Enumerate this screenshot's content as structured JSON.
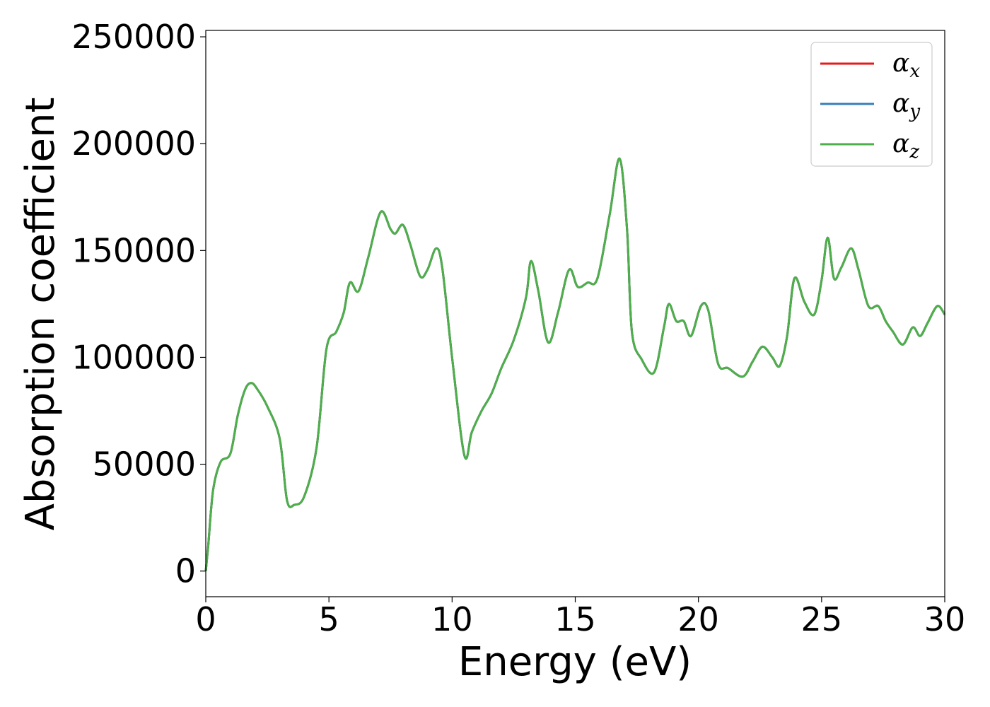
{
  "chart_data": {
    "type": "line",
    "title": "",
    "xlabel": "Energy (eV)",
    "ylabel": "Absorption coefficient",
    "xlim": [
      0,
      30
    ],
    "ylim": [
      -12000,
      253000
    ],
    "xticks": [
      0,
      5,
      10,
      15,
      20,
      25,
      30
    ],
    "xtick_labels": [
      "0",
      "5",
      "10",
      "15",
      "20",
      "25",
      "30"
    ],
    "yticks": [
      0,
      50000,
      100000,
      150000,
      200000,
      250000
    ],
    "ytick_labels": [
      "0",
      "50000",
      "100000",
      "150000",
      "200000",
      "250000"
    ],
    "grid": false,
    "legend_position": "top-right",
    "x": [
      0,
      0.1,
      0.3,
      0.6,
      1.0,
      1.3,
      1.6,
      1.85,
      2.1,
      2.5,
      3.0,
      3.3,
      3.6,
      4.0,
      4.5,
      4.9,
      5.3,
      5.6,
      5.85,
      6.2,
      6.6,
      7.1,
      7.5,
      7.7,
      8.0,
      8.3,
      8.7,
      9.0,
      9.35,
      9.6,
      10.0,
      10.5,
      10.8,
      11.2,
      11.6,
      12.0,
      12.5,
      13.0,
      13.2,
      13.5,
      13.9,
      14.3,
      14.75,
      15.1,
      15.5,
      15.9,
      16.4,
      16.8,
      17.1,
      17.3,
      17.7,
      18.2,
      18.6,
      18.8,
      19.1,
      19.4,
      19.7,
      20.1,
      20.4,
      20.8,
      21.2,
      21.8,
      22.2,
      22.6,
      23.0,
      23.3,
      23.6,
      23.9,
      24.3,
      24.7,
      25.0,
      25.25,
      25.5,
      25.8,
      26.2,
      26.5,
      26.9,
      27.3,
      27.6,
      27.9,
      28.3,
      28.7,
      29.0,
      29.3,
      29.7,
      30.0
    ],
    "series": [
      {
        "name": "α_x",
        "legend_main": "α",
        "legend_sub": "x",
        "color": "#e41a1c",
        "values": [
          0,
          12000,
          38000,
          51000,
          55000,
          73000,
          85000,
          88000,
          85000,
          77000,
          62000,
          33000,
          31000,
          35000,
          58000,
          104000,
          112000,
          121000,
          135000,
          131000,
          147000,
          168000,
          160000,
          158000,
          162000,
          153000,
          138000,
          141000,
          151000,
          142000,
          100000,
          54000,
          65000,
          75000,
          83000,
          95000,
          108000,
          128000,
          145000,
          131000,
          107000,
          121000,
          141000,
          133000,
          135000,
          137000,
          167000,
          193000,
          160000,
          112000,
          99000,
          93000,
          114000,
          125000,
          117000,
          117000,
          110000,
          124000,
          122000,
          97000,
          95000,
          91000,
          98000,
          105000,
          100000,
          96000,
          110000,
          137000,
          126000,
          120000,
          136000,
          156000,
          137000,
          142000,
          151000,
          141000,
          124000,
          124000,
          117000,
          112000,
          106000,
          114000,
          110000,
          116000,
          124000,
          120000
        ]
      },
      {
        "name": "α_y",
        "legend_main": "α",
        "legend_sub": "y",
        "color": "#377eb8",
        "values": [
          0,
          12000,
          38000,
          51000,
          55000,
          73000,
          85000,
          88000,
          85000,
          77000,
          62000,
          33000,
          31000,
          35000,
          58000,
          104000,
          112000,
          121000,
          135000,
          131000,
          147000,
          168000,
          160000,
          158000,
          162000,
          153000,
          138000,
          141000,
          151000,
          142000,
          100000,
          54000,
          65000,
          75000,
          83000,
          95000,
          108000,
          128000,
          145000,
          131000,
          107000,
          121000,
          141000,
          133000,
          135000,
          137000,
          167000,
          193000,
          160000,
          112000,
          99000,
          93000,
          114000,
          125000,
          117000,
          117000,
          110000,
          124000,
          122000,
          97000,
          95000,
          91000,
          98000,
          105000,
          100000,
          96000,
          110000,
          137000,
          126000,
          120000,
          136000,
          156000,
          137000,
          142000,
          151000,
          141000,
          124000,
          124000,
          117000,
          112000,
          106000,
          114000,
          110000,
          116000,
          124000,
          120000
        ]
      },
      {
        "name": "α_z",
        "legend_main": "α",
        "legend_sub": "z",
        "color": "#4daf4a",
        "values": [
          0,
          12000,
          38000,
          51000,
          55000,
          73000,
          85000,
          88000,
          85000,
          77000,
          62000,
          33000,
          31000,
          35000,
          58000,
          104000,
          112000,
          121000,
          135000,
          131000,
          147000,
          168000,
          160000,
          158000,
          162000,
          153000,
          138000,
          141000,
          151000,
          142000,
          100000,
          54000,
          65000,
          75000,
          83000,
          95000,
          108000,
          128000,
          145000,
          131000,
          107000,
          121000,
          141000,
          133000,
          135000,
          137000,
          167000,
          193000,
          160000,
          112000,
          99000,
          93000,
          114000,
          125000,
          117000,
          117000,
          110000,
          124000,
          122000,
          97000,
          95000,
          91000,
          98000,
          105000,
          100000,
          96000,
          110000,
          137000,
          126000,
          120000,
          136000,
          156000,
          137000,
          142000,
          151000,
          141000,
          124000,
          124000,
          117000,
          112000,
          106000,
          114000,
          110000,
          116000,
          124000,
          120000
        ]
      }
    ]
  }
}
